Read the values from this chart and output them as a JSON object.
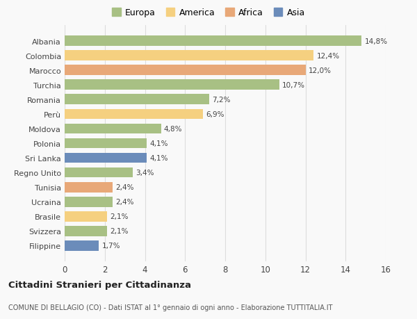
{
  "categories": [
    "Albania",
    "Colombia",
    "Marocco",
    "Turchia",
    "Romania",
    "Perù",
    "Moldova",
    "Polonia",
    "Sri Lanka",
    "Regno Unito",
    "Tunisia",
    "Ucraina",
    "Brasile",
    "Svizzera",
    "Filippine"
  ],
  "values": [
    14.8,
    12.4,
    12.0,
    10.7,
    7.2,
    6.9,
    4.8,
    4.1,
    4.1,
    3.4,
    2.4,
    2.4,
    2.1,
    2.1,
    1.7
  ],
  "labels": [
    "14,8%",
    "12,4%",
    "12,0%",
    "10,7%",
    "7,2%",
    "6,9%",
    "4,8%",
    "4,1%",
    "4,1%",
    "3,4%",
    "2,4%",
    "2,4%",
    "2,1%",
    "2,1%",
    "1,7%"
  ],
  "colors": [
    "#a8c084",
    "#f5d080",
    "#e8a878",
    "#a8c084",
    "#a8c084",
    "#f5d080",
    "#a8c084",
    "#a8c084",
    "#6b8cba",
    "#a8c084",
    "#e8a878",
    "#a8c084",
    "#f5d080",
    "#a8c084",
    "#6b8cba"
  ],
  "legend_labels": [
    "Europa",
    "America",
    "Africa",
    "Asia"
  ],
  "legend_colors": [
    "#a8c084",
    "#f5d080",
    "#e8a878",
    "#6b8cba"
  ],
  "title": "Cittadini Stranieri per Cittadinanza",
  "subtitle": "COMUNE DI BELLAGIO (CO) - Dati ISTAT al 1° gennaio di ogni anno - Elaborazione TUTTITALIA.IT",
  "xlim": [
    0,
    16
  ],
  "xticks": [
    0,
    2,
    4,
    6,
    8,
    10,
    12,
    14,
    16
  ],
  "background_color": "#f9f9f9",
  "grid_color": "#dddddd",
  "bar_height": 0.7
}
